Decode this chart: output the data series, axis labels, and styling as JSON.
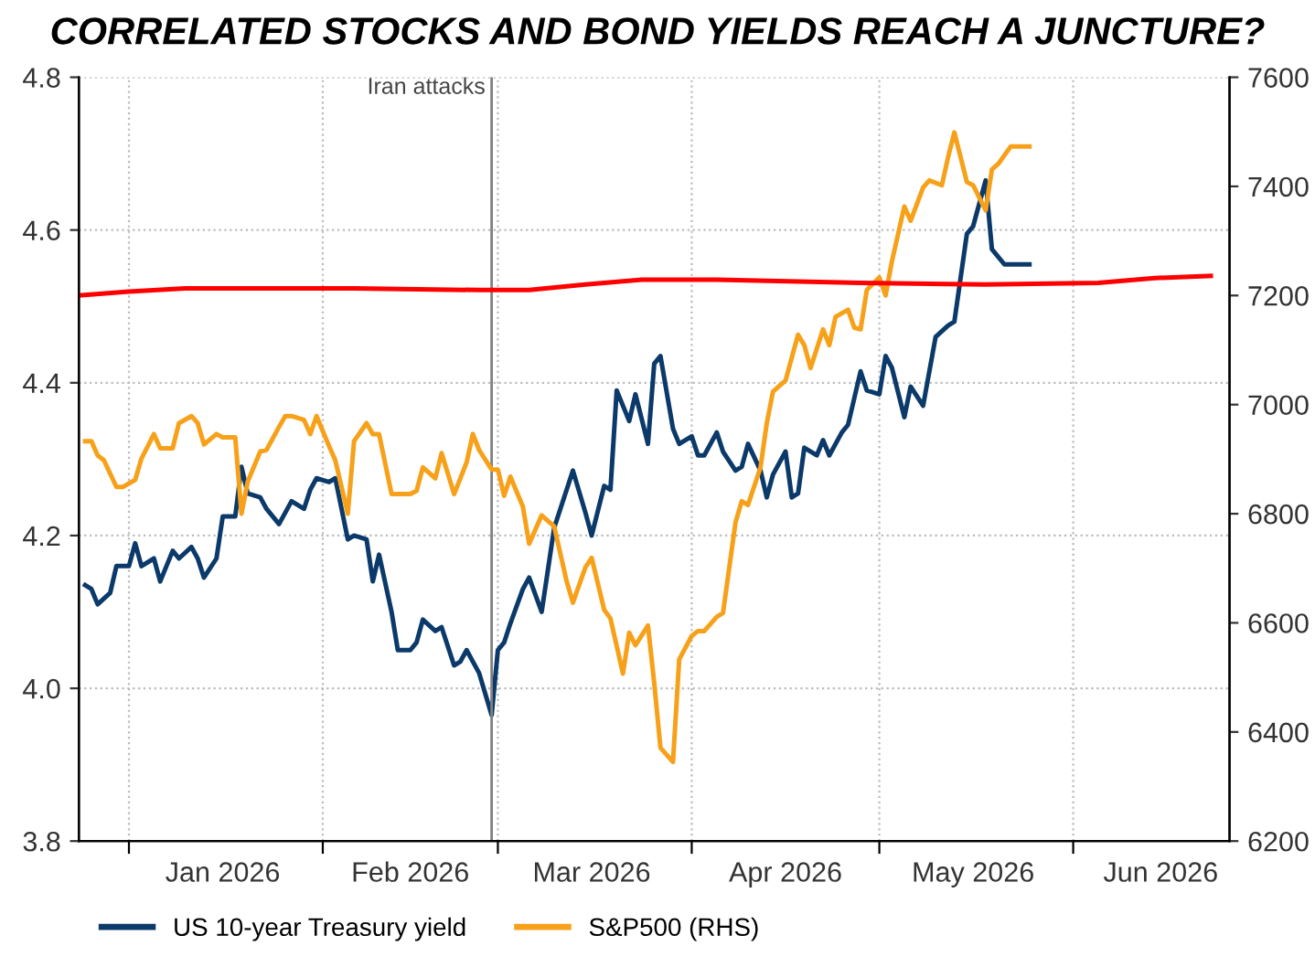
{
  "chart_data": {
    "type": "line",
    "title": "CORRELATED STOCKS AND BOND YIELDS REACH A JUNCTURE?",
    "xlim": [
      "2025-12-24",
      "2026-06-26"
    ],
    "xticks": [
      {
        "value": "2026-01-01",
        "label": null
      },
      {
        "value": "2026-01-16",
        "label": "Jan 2026"
      },
      {
        "value": "2026-02-01",
        "label": null
      },
      {
        "value": "2026-02-15",
        "label": "Feb 2026"
      },
      {
        "value": "2026-03-01",
        "label": null
      },
      {
        "value": "2026-03-16",
        "label": "Mar 2026"
      },
      {
        "value": "2026-04-01",
        "label": null
      },
      {
        "value": "2026-04-16",
        "label": "Apr 2026"
      },
      {
        "value": "2026-05-01",
        "label": null
      },
      {
        "value": "2026-05-16",
        "label": "May 2026"
      },
      {
        "value": "2026-06-01",
        "label": null
      },
      {
        "value": "2026-06-15",
        "label": "Jun 2026"
      }
    ],
    "ylim": [
      3.8,
      4.8
    ],
    "yticks": [
      3.8,
      {
        "value": 4.0,
        "label": "4.0"
      },
      4.2,
      4.4,
      4.6,
      4.8
    ],
    "y2lim": [
      6200,
      7600
    ],
    "y2ticks": [
      6200,
      6400,
      6600,
      6800,
      7000,
      7200,
      7400,
      7600
    ],
    "grid": true,
    "legend": "bottom",
    "ref_lines": [
      {
        "axis": "x",
        "value": "2026-02-28",
        "label": "Iran attacks",
        "color": "#808080"
      }
    ],
    "series": [
      {
        "name": "US 10-year Treasury yield",
        "color": "#0b3a6a",
        "x": [
          "2025-12-25",
          "2025-12-26",
          "2025-12-27",
          "2025-12-29",
          "2025-12-30",
          "2026-01-01",
          "2026-01-02",
          "2026-01-03",
          "2026-01-05",
          "2026-01-06",
          "2026-01-08",
          "2026-01-09",
          "2026-01-11",
          "2026-01-12",
          "2026-01-13",
          "2026-01-15",
          "2026-01-16",
          "2026-01-18",
          "2026-01-19",
          "2026-01-20",
          "2026-01-22",
          "2026-01-23",
          "2026-01-25",
          "2026-01-26",
          "2026-01-27",
          "2026-01-29",
          "2026-01-30",
          "2026-01-31",
          "2026-02-02",
          "2026-02-03",
          "2026-02-05",
          "2026-02-06",
          "2026-02-08",
          "2026-02-09",
          "2026-02-10",
          "2026-02-12",
          "2026-02-13",
          "2026-02-15",
          "2026-02-16",
          "2026-02-17",
          "2026-02-19",
          "2026-02-20",
          "2026-02-22",
          "2026-02-23",
          "2026-02-24",
          "2026-02-26",
          "2026-02-28",
          "2026-03-01",
          "2026-03-02",
          "2026-03-03",
          "2026-03-05",
          "2026-03-06",
          "2026-03-08",
          "2026-03-09",
          "2026-03-10",
          "2026-03-12",
          "2026-03-13",
          "2026-03-15",
          "2026-03-16",
          "2026-03-18",
          "2026-03-19",
          "2026-03-20",
          "2026-03-22",
          "2026-03-23",
          "2026-03-25",
          "2026-03-26",
          "2026-03-27",
          "2026-03-29",
          "2026-03-30",
          "2026-04-01",
          "2026-04-02",
          "2026-04-03",
          "2026-04-05",
          "2026-04-06",
          "2026-04-08",
          "2026-04-09",
          "2026-04-10",
          "2026-04-12",
          "2026-04-13",
          "2026-04-14",
          "2026-04-16",
          "2026-04-17",
          "2026-04-18",
          "2026-04-19",
          "2026-04-21",
          "2026-04-22",
          "2026-04-23",
          "2026-04-25",
          "2026-04-26",
          "2026-04-28",
          "2026-04-29",
          "2026-05-01",
          "2026-05-02",
          "2026-05-03",
          "2026-05-05",
          "2026-05-06",
          "2026-05-08",
          "2026-05-09",
          "2026-05-10",
          "2026-05-12",
          "2026-05-13",
          "2026-05-15",
          "2026-05-16",
          "2026-05-18",
          "2026-05-19",
          "2026-05-21",
          "2026-05-22",
          "2026-05-25"
        ],
        "values": [
          4.135,
          4.13,
          4.11,
          4.125,
          4.16,
          4.16,
          4.19,
          4.16,
          4.17,
          4.14,
          4.18,
          4.17,
          4.185,
          4.17,
          4.145,
          4.17,
          4.225,
          4.225,
          4.29,
          4.255,
          4.25,
          4.235,
          4.215,
          4.23,
          4.245,
          4.235,
          4.26,
          4.275,
          4.27,
          4.275,
          4.195,
          4.2,
          4.195,
          4.14,
          4.175,
          4.1,
          4.05,
          4.05,
          4.06,
          4.09,
          4.075,
          4.08,
          4.03,
          4.035,
          4.05,
          4.02,
          3.965,
          4.05,
          4.06,
          4.085,
          4.13,
          4.145,
          4.1,
          4.155,
          4.21,
          4.26,
          4.285,
          4.23,
          4.2,
          4.265,
          4.26,
          4.39,
          4.35,
          4.385,
          4.32,
          4.425,
          4.435,
          4.34,
          4.32,
          4.33,
          4.305,
          4.305,
          4.335,
          4.31,
          4.285,
          4.29,
          4.32,
          4.285,
          4.25,
          4.28,
          4.31,
          4.25,
          4.255,
          4.315,
          4.305,
          4.325,
          4.305,
          4.335,
          4.345,
          4.415,
          4.39,
          4.385,
          4.435,
          4.42,
          4.355,
          4.395,
          4.37,
          4.415,
          4.46,
          4.475,
          4.48,
          4.595,
          4.605,
          4.665,
          4.575,
          4.555,
          4.555,
          4.555
        ]
      },
      {
        "name": "S&P500 (RHS)",
        "color": "#f7a11a",
        "axis": "y2",
        "x": [
          "2025-12-25",
          "2025-12-26",
          "2025-12-27",
          "2025-12-28",
          "2025-12-30",
          "2025-12-31",
          "2026-01-02",
          "2026-01-03",
          "2026-01-05",
          "2026-01-06",
          "2026-01-08",
          "2026-01-09",
          "2026-01-11",
          "2026-01-12",
          "2026-01-13",
          "2026-01-15",
          "2026-01-16",
          "2026-01-18",
          "2026-01-19",
          "2026-01-20",
          "2026-01-22",
          "2026-01-23",
          "2026-01-25",
          "2026-01-26",
          "2026-01-27",
          "2026-01-29",
          "2026-01-30",
          "2026-01-31",
          "2026-02-02",
          "2026-02-03",
          "2026-02-05",
          "2026-02-06",
          "2026-02-08",
          "2026-02-09",
          "2026-02-10",
          "2026-02-12",
          "2026-02-13",
          "2026-02-15",
          "2026-02-16",
          "2026-02-17",
          "2026-02-19",
          "2026-02-20",
          "2026-02-22",
          "2026-02-24",
          "2026-02-25",
          "2026-02-26",
          "2026-02-28",
          "2026-03-01",
          "2026-03-02",
          "2026-03-03",
          "2026-03-05",
          "2026-03-06",
          "2026-03-08",
          "2026-03-09",
          "2026-03-10",
          "2026-03-12",
          "2026-03-13",
          "2026-03-15",
          "2026-03-16",
          "2026-03-18",
          "2026-03-19",
          "2026-03-21",
          "2026-03-22",
          "2026-03-23",
          "2026-03-25",
          "2026-03-26",
          "2026-03-27",
          "2026-03-29",
          "2026-03-30",
          "2026-04-01",
          "2026-04-02",
          "2026-04-03",
          "2026-04-05",
          "2026-04-06",
          "2026-04-08",
          "2026-04-09",
          "2026-04-10",
          "2026-04-12",
          "2026-04-13",
          "2026-04-14",
          "2026-04-16",
          "2026-04-18",
          "2026-04-19",
          "2026-04-20",
          "2026-04-22",
          "2026-04-23",
          "2026-04-24",
          "2026-04-26",
          "2026-04-27",
          "2026-04-28",
          "2026-04-29",
          "2026-05-01",
          "2026-05-02",
          "2026-05-03",
          "2026-05-05",
          "2026-05-06",
          "2026-05-08",
          "2026-05-09",
          "2026-05-11",
          "2026-05-12",
          "2026-05-13",
          "2026-05-15",
          "2026-05-16",
          "2026-05-18",
          "2026-05-19",
          "2026-05-20",
          "2026-05-22",
          "2026-05-25"
        ],
        "values": [
          6933,
          6933,
          6907,
          6898,
          6849,
          6849,
          6862,
          6901,
          6946,
          6920,
          6920,
          6966,
          6979,
          6966,
          6927,
          6946,
          6940,
          6940,
          6800,
          6859,
          6914,
          6917,
          6959,
          6979,
          6979,
          6972,
          6946,
          6979,
          6924,
          6898,
          6800,
          6933,
          6966,
          6946,
          6946,
          6836,
          6836,
          6836,
          6842,
          6885,
          6865,
          6911,
          6836,
          6894,
          6946,
          6917,
          6881,
          6881,
          6833,
          6868,
          6813,
          6745,
          6797,
          6787,
          6777,
          6676,
          6637,
          6702,
          6719,
          6624,
          6608,
          6507,
          6582,
          6559,
          6595,
          6490,
          6371,
          6345,
          6533,
          6576,
          6585,
          6585,
          6611,
          6618,
          6784,
          6823,
          6816,
          6885,
          6966,
          7024,
          7044,
          7128,
          7109,
          7067,
          7138,
          7109,
          7161,
          7174,
          7141,
          7138,
          7210,
          7233,
          7200,
          7262,
          7363,
          7337,
          7398,
          7411,
          7402,
          7454,
          7499,
          7408,
          7402,
          7356,
          7431,
          7441,
          7473,
          7473
        ]
      },
      {
        "color": "#ff0000",
        "axis": "y2",
        "x": [
          "2025-12-24",
          "2026-01-01",
          "2026-01-10",
          "2026-02-06",
          "2026-02-26",
          "2026-03-06",
          "2026-03-15",
          "2026-03-24",
          "2026-04-05",
          "2026-04-28",
          "2026-05-18",
          "2026-06-05",
          "2026-06-14",
          "2026-06-23"
        ],
        "values": [
          7200,
          7207,
          7213,
          7213,
          7210,
          7210,
          7220,
          7229,
          7229,
          7223,
          7220,
          7223,
          7232,
          7236
        ]
      }
    ]
  }
}
